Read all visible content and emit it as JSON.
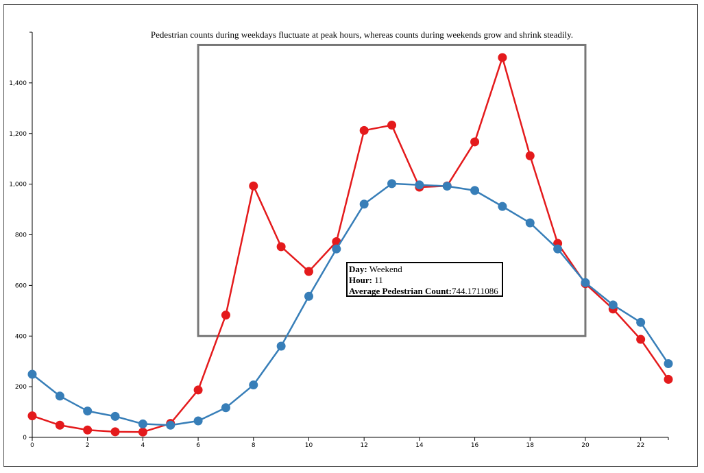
{
  "chart_data": {
    "type": "line",
    "title": "Pedestrian counts during weekdays fluctuate at peak hours, whereas counts during weekends grow and shrink steadily.",
    "xlabel": "",
    "ylabel": "",
    "xlim": [
      0,
      23
    ],
    "ylim": [
      0,
      1600
    ],
    "x_ticks": [
      0,
      2,
      4,
      6,
      8,
      10,
      12,
      14,
      16,
      18,
      20,
      22
    ],
    "y_ticks": [
      0,
      200,
      400,
      600,
      800,
      1000,
      1200,
      1400
    ],
    "y_tick_labels": [
      "0",
      "200",
      "400",
      "600",
      "800",
      "1,000",
      "1,200",
      "1,400"
    ],
    "grid": false,
    "x": [
      0,
      1,
      2,
      3,
      4,
      5,
      6,
      7,
      8,
      9,
      10,
      11,
      12,
      13,
      14,
      15,
      16,
      17,
      18,
      19,
      20,
      21,
      22,
      23
    ],
    "series": [
      {
        "color": "#e41a1c",
        "values": [
          85,
          48,
          29,
          22,
          21,
          55,
          187,
          483,
          993,
          753,
          655,
          773,
          1212,
          1233,
          988,
          993,
          1167,
          1500,
          1112,
          766,
          607,
          507,
          387,
          229
        ]
      },
      {
        "color": "#377eb8",
        "values": [
          249,
          163,
          104,
          83,
          53,
          48,
          65,
          117,
          207,
          360,
          557,
          744,
          921,
          1002,
          997,
          992,
          975,
          912,
          847,
          744,
          611,
          523,
          454,
          291
        ]
      }
    ],
    "annotation_box": {
      "x_range": [
        6,
        20
      ],
      "y_range": [
        400,
        1550
      ]
    },
    "tooltip": {
      "day_label": "Day:",
      "day_value": "Weekend",
      "hour_label": "Hour:",
      "hour_value": "11",
      "count_label": "Average Pedestrian Count:",
      "count_value": "744.1711086"
    }
  }
}
